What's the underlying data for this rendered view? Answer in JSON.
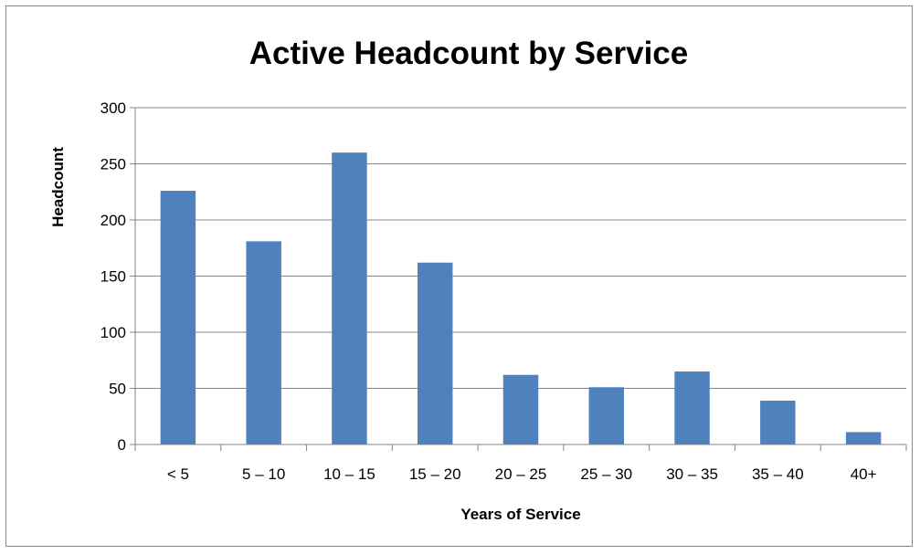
{
  "chart_data": {
    "type": "bar",
    "title": "Active Headcount by Service",
    "xlabel": "Years of Service",
    "ylabel": "Headcount",
    "categories": [
      "< 5",
      "5 – 10",
      "10 – 15",
      "15 – 20",
      "20 – 25",
      "25 – 30",
      "30 – 35",
      "35 – 40",
      "40+"
    ],
    "values": [
      226,
      181,
      260,
      162,
      62,
      51,
      65,
      39,
      11
    ],
    "ylim": [
      0,
      300
    ],
    "yticks": [
      0,
      50,
      100,
      150,
      200,
      250,
      300
    ],
    "grid": true,
    "legend": "none",
    "bar_color": "#4f81bd"
  }
}
